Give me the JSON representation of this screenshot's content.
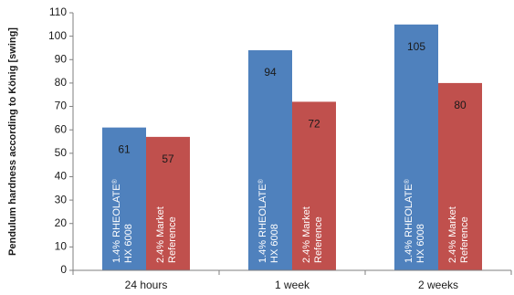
{
  "chart_data": {
    "type": "bar",
    "title": "",
    "xlabel": "",
    "ylabel": "Pendulum hardness according to König [swing]",
    "ylim": [
      0,
      110
    ],
    "yticks": [
      0,
      10,
      20,
      30,
      40,
      50,
      60,
      70,
      80,
      90,
      100,
      110
    ],
    "categories": [
      "24 hours",
      "1 week",
      "2 weeks"
    ],
    "grid": false,
    "series": [
      {
        "name": "1.4% RHEOLATE® HX 6008",
        "label_lines": [
          "1.4% RHEOLATE®",
          "HX 6008"
        ],
        "color": "#4f81bd",
        "values": [
          61,
          94,
          105
        ]
      },
      {
        "name": "2.4% Market Reference",
        "label_lines": [
          "2.4% Market",
          "Reference"
        ],
        "color": "#c0504d",
        "values": [
          57,
          72,
          80
        ]
      }
    ]
  }
}
